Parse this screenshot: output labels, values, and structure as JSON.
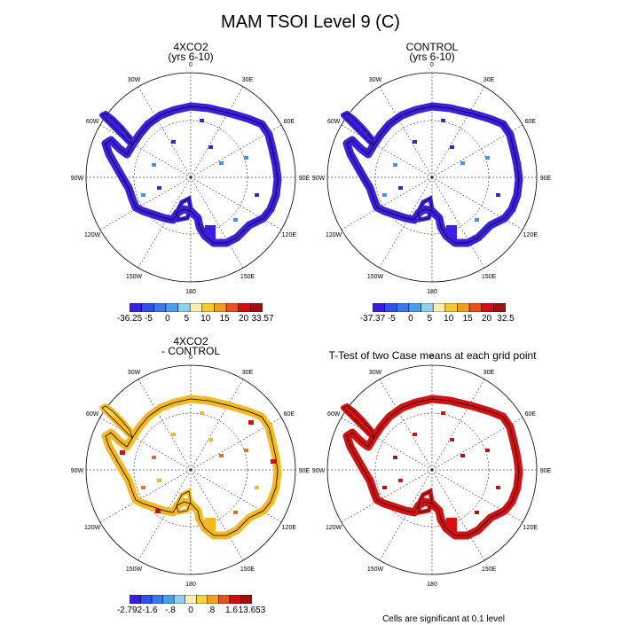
{
  "title": "MAM TSOI Level 9 (C)",
  "panels": [
    {
      "id": "4xco2",
      "title_line1": "4XCO2",
      "title_line2": "(yrs 6-10)",
      "colorbar": {
        "colors": [
          "#3a1fe0",
          "#2f4fe8",
          "#3a78e8",
          "#4aa0e8",
          "#8fd0f0",
          "#f6efb0",
          "#f5c830",
          "#f09a20",
          "#e85020",
          "#d01010",
          "#a01010"
        ],
        "labels": [
          "-36.25",
          "-5",
          "0",
          "5",
          "10",
          "15",
          "20",
          "33.57"
        ]
      }
    },
    {
      "id": "control",
      "title_line1": "CONTROL",
      "title_line2": "(yrs 6-10)",
      "colorbar": {
        "colors": [
          "#3a1fe0",
          "#2f4fe8",
          "#3a78e8",
          "#4aa0e8",
          "#8fd0f0",
          "#f6efb0",
          "#f5c830",
          "#f09a20",
          "#e85020",
          "#d01010",
          "#a01010"
        ],
        "labels": [
          "-37.37",
          "-5",
          "0",
          "5",
          "10",
          "15",
          "20",
          "32.5"
        ]
      }
    },
    {
      "id": "diff",
      "title_line1": "4XCO2",
      "title_line2": "- CONTROL",
      "colorbar": {
        "colors": [
          "#3a1fe0",
          "#2f4fe8",
          "#3a78e8",
          "#4aa0e8",
          "#8fd0f0",
          "#f6efb0",
          "#f5d040",
          "#f0a020",
          "#e85020",
          "#d01010",
          "#a01010"
        ],
        "labels": [
          "-2.792",
          "-1.6",
          "-.8",
          "0",
          ".8",
          "1.6",
          "13.653"
        ]
      }
    },
    {
      "id": "ttest",
      "title_line1": "T-Test of two Case means at each grid point",
      "title_line2": ""
    }
  ],
  "map_labels": {
    "lon": [
      "0",
      "30E",
      "60E",
      "90E",
      "120E",
      "150E",
      "180",
      "150W",
      "120W",
      "90W",
      "60W",
      "30W"
    ]
  },
  "footnote": "Cells are significant at 0.1 level",
  "colors": {
    "blue_fill": "#3a1fe0",
    "light_blue": "#48a8e8",
    "orange": "#f5b820",
    "dark_orange": "#e87020",
    "red": "#d41010",
    "coast": "#000000"
  }
}
